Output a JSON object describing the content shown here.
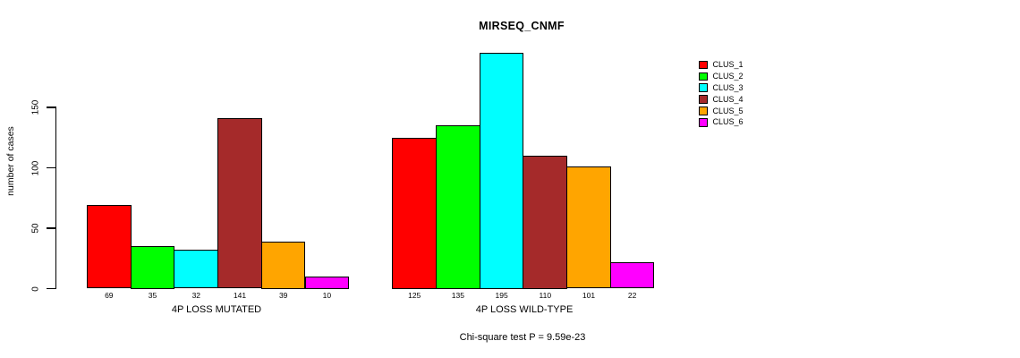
{
  "chart_data": {
    "type": "bar",
    "title": "MIRSEQ_CNMF",
    "ylabel": "number of cases",
    "yticks": [
      0,
      50,
      100,
      150
    ],
    "ylim": [
      0,
      200
    ],
    "grid": false,
    "legend_position": "right",
    "legend": [
      {
        "label": "CLUS_1",
        "color": "#FF0000"
      },
      {
        "label": "CLUS_2",
        "color": "#00FF00"
      },
      {
        "label": "CLUS_3",
        "color": "#00FFFF"
      },
      {
        "label": "CLUS_4",
        "color": "#A52A2A"
      },
      {
        "label": "CLUS_5",
        "color": "#FFA500"
      },
      {
        "label": "CLUS_6",
        "color": "#FF00FF"
      }
    ],
    "series_colors": [
      "#FF0000",
      "#00FF00",
      "#00FFFF",
      "#A52A2A",
      "#FFA500",
      "#FF00FF"
    ],
    "groups": [
      {
        "label": "4P LOSS MUTATED",
        "values": [
          69,
          35,
          32,
          141,
          39,
          10
        ]
      },
      {
        "label": "4P LOSS WILD-TYPE",
        "values": [
          125,
          135,
          195,
          110,
          101,
          22
        ]
      }
    ],
    "bar_border_color": "#000000",
    "footnote": "Chi-square test P = 9.59e-23"
  }
}
